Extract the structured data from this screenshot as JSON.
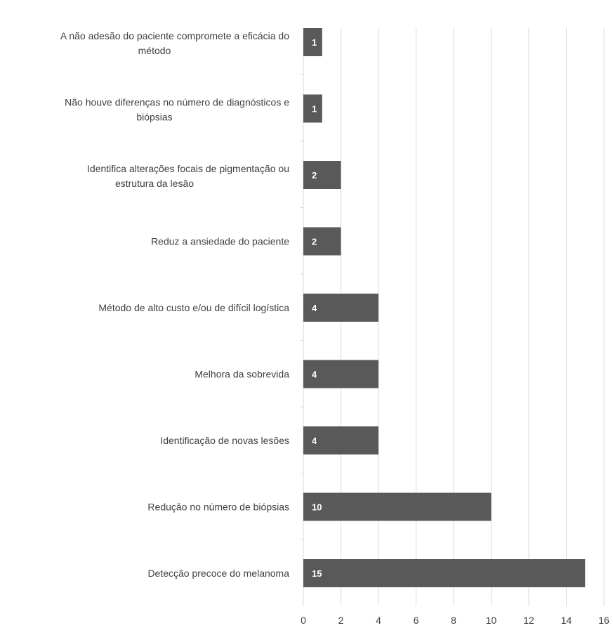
{
  "chart_data": {
    "type": "bar",
    "orientation": "horizontal",
    "title": "",
    "xlabel": "",
    "ylabel": "",
    "xlim": [
      0,
      16
    ],
    "ticks": [
      "0",
      "2",
      "4",
      "6",
      "8",
      "10",
      "12",
      "14",
      "16"
    ],
    "grid": true,
    "legend": "none",
    "bar_color": "#595959",
    "categories": [
      [
        "A não adesão do paciente compromete a eficácia do",
        "método"
      ],
      [
        "Não houve diferenças no número de diagnósticos e",
        "biópsias"
      ],
      [
        "Identifica alterações focais de pigmentação ou",
        "estrutura da lesão"
      ],
      [
        "Reduz a ansiedade do paciente"
      ],
      [
        "Método de alto custo e/ou de difícil logística"
      ],
      [
        "Melhora da sobrevida"
      ],
      [
        "Identificação de novas lesões"
      ],
      [
        "Redução no número de biópsias"
      ],
      [
        "Detecção precoce do melanoma"
      ]
    ],
    "values": [
      1,
      1,
      2,
      2,
      4,
      4,
      4,
      10,
      15
    ]
  }
}
